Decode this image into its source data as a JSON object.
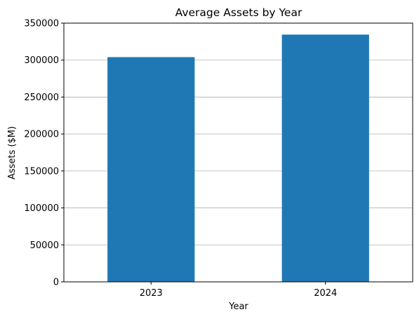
{
  "chart_data": {
    "type": "bar",
    "title": "Average Assets by Year",
    "xlabel": "Year",
    "ylabel": "Assets ($M)",
    "categories": [
      "2023",
      "2024"
    ],
    "values": [
      304000,
      334500
    ],
    "ylim": [
      0,
      350000
    ],
    "yticks": [
      0,
      50000,
      100000,
      150000,
      200000,
      250000,
      300000,
      350000
    ],
    "ytick_labels": [
      "0",
      "50000",
      "100000",
      "150000",
      "200000",
      "250000",
      "300000",
      "350000"
    ],
    "grid": "y",
    "bar_color": "#1f77b4",
    "legend": "none"
  }
}
